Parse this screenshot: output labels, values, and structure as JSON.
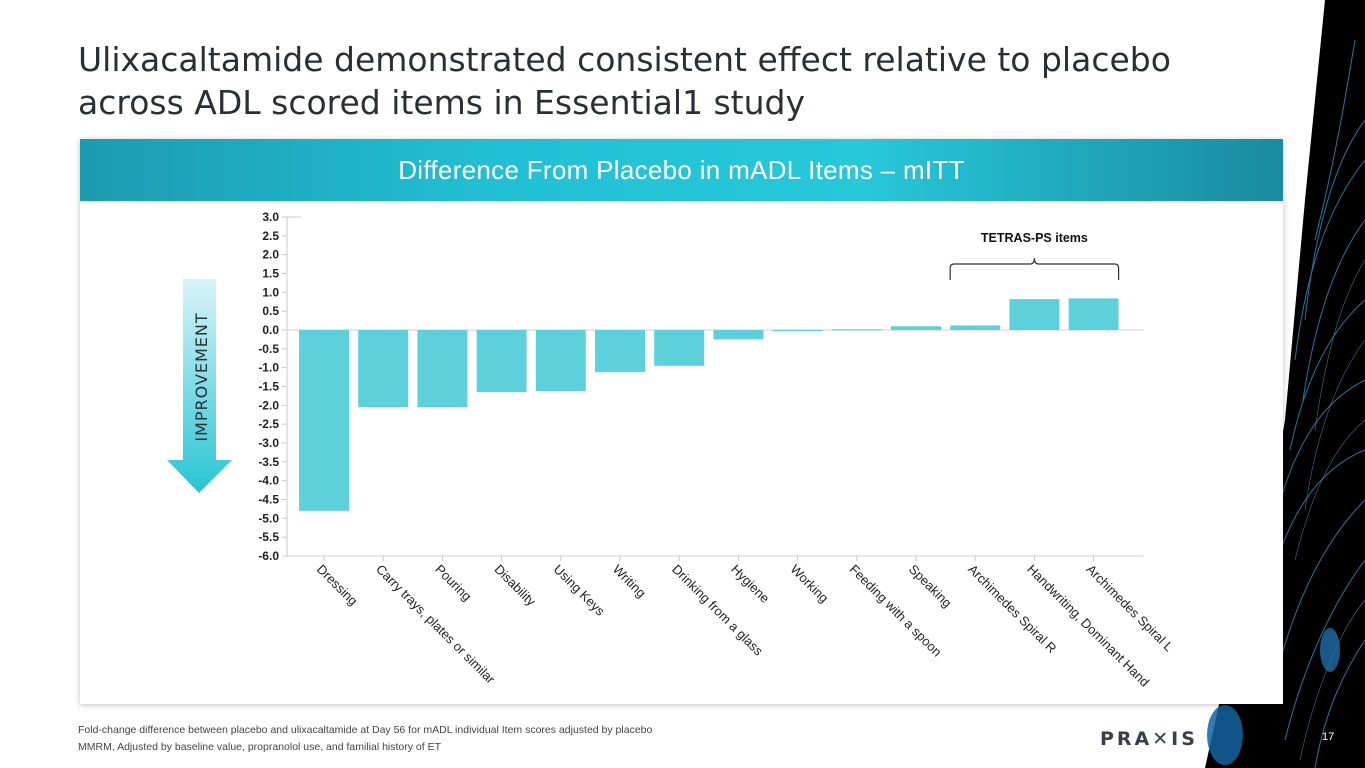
{
  "slide": {
    "title": "Ulixacaltamide demonstrated consistent effect relative to placebo across ADL scored items in Essential1 study",
    "page_number": "17",
    "logo_text": "PRA✕IS",
    "footnote_lines": [
      "Fold-change difference between placebo and ulixacaltamide at Day 56 for mADL individual Item scores adjusted by placebo",
      "MMRM, Adjusted by baseline value, propranolol use, and familial history of ET"
    ]
  },
  "colors": {
    "bar": "#5dd0dc",
    "arrow_top": "#d9f4f8",
    "arrow_bottom": "#27c4d4",
    "header": "#22c0d4"
  },
  "chart_data": {
    "type": "bar",
    "title": "Difference From Placebo in mADL Items – mITT",
    "categories": [
      "Dressing",
      "Carry trays, plates or similar",
      "Pouring",
      "Disability",
      "Using Keys",
      "Writing",
      "Drinking from a glass",
      "Hygiene",
      "Working",
      "Feeding with a spoon",
      "Speaking",
      "Archimedes Spiral R",
      "Handwriting, Dominant Hand",
      "Archimedes Spiral L"
    ],
    "values": [
      -4.8,
      -2.05,
      -2.05,
      -1.65,
      -1.62,
      -1.12,
      -0.95,
      -0.25,
      -0.03,
      0.02,
      0.1,
      0.12,
      0.82,
      0.84
    ],
    "ylim": [
      -6.0,
      3.0
    ],
    "yticks": [
      "3.0",
      "2.5",
      "2.0",
      "1.5",
      "1.0",
      "0.5",
      "0.0",
      "-0.5",
      "-1.0",
      "-1.5",
      "-2.0",
      "-2.5",
      "-3.0",
      "-3.5",
      "-4.0",
      "-4.5",
      "-5.0",
      "-5.5",
      "-6.0"
    ],
    "xlabel": "",
    "ylabel": "",
    "improvement_label": "IMPROVEMENT",
    "bracket_label": "TETRAS-PS items",
    "bracket_range": [
      "Archimedes Spiral R",
      "Archimedes Spiral L"
    ]
  }
}
